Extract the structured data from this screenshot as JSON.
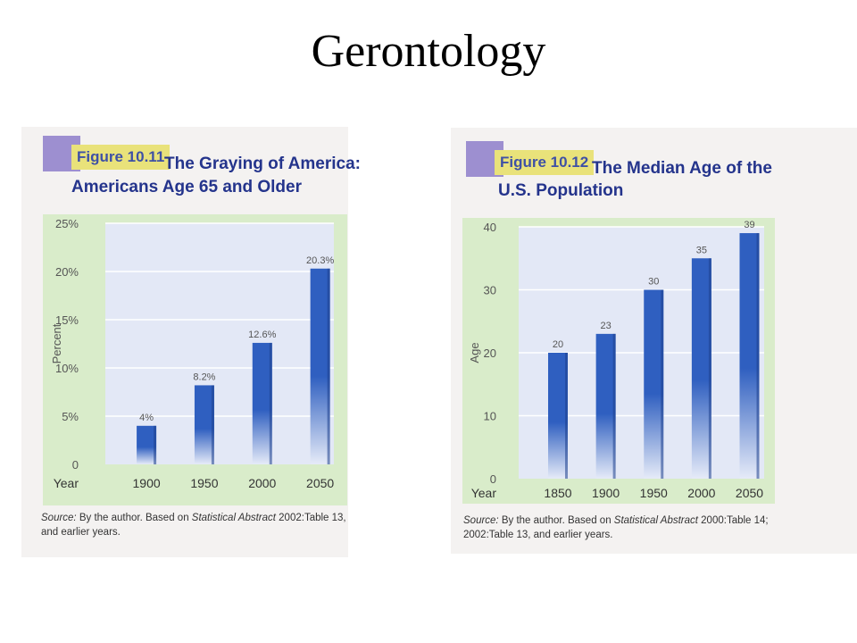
{
  "slide_title": "Gerontology",
  "colors": {
    "panel": "#d9ecca",
    "plot": "#e3e8f6",
    "bar": "#2f5fc0",
    "badge_purple": "#9d8fd0",
    "badge_yellow": "#e9e27a",
    "title_blue": "#24348c"
  },
  "figures": [
    {
      "figure_label": "Figure 10.11",
      "title_line1": "The Graying of America:",
      "title_line2": "Americans Age 65 and Older",
      "source_label": "Source:",
      "source_text1": " By the author. Based on ",
      "source_italic": "Statistical Abstract",
      "source_text2": " 2002:Table 13,",
      "source_line2": "and earlier years."
    },
    {
      "figure_label": "Figure 10.12",
      "title_line1": "The Median Age of the",
      "title_line2": "U.S. Population",
      "source_label": "Source:",
      "source_text1": " By the author. Based on ",
      "source_italic": "Statistical Abstract",
      "source_text2": " 2000:Table 14;",
      "source_line2": "2002:Table 13, and earlier years."
    }
  ],
  "chart_data": [
    {
      "type": "bar",
      "categories": [
        "1900",
        "1950",
        "2000",
        "2050"
      ],
      "values": [
        4,
        8.2,
        12.6,
        20.3
      ],
      "data_labels": [
        "4%",
        "8.2%",
        "12.6%",
        "20.3%"
      ],
      "yticks": [
        "0",
        "5%",
        "10%",
        "15%",
        "20%",
        "25%"
      ],
      "ylim": [
        0,
        25
      ],
      "xlabel": "Year",
      "ylabel": "Percent",
      "grid": true
    },
    {
      "type": "bar",
      "categories": [
        "1850",
        "1900",
        "1950",
        "2000",
        "2050"
      ],
      "values": [
        20,
        23,
        30,
        35,
        39
      ],
      "data_labels": [
        "20",
        "23",
        "30",
        "35",
        "39"
      ],
      "yticks": [
        "0",
        "10",
        "20",
        "30",
        "40"
      ],
      "ylim": [
        0,
        40
      ],
      "xlabel": "Year",
      "ylabel": "Age",
      "grid": true
    }
  ]
}
